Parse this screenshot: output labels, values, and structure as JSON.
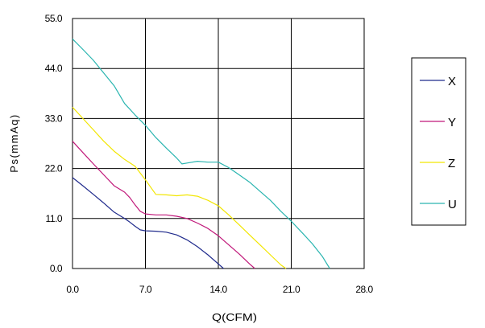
{
  "chart_data": {
    "type": "line",
    "xlabel": "Q(CFM)",
    "ylabel": "Ps(mmAq)",
    "xlim": [
      0,
      28
    ],
    "ylim": [
      0,
      55
    ],
    "x_ticks": [
      "0.0",
      "7.0",
      "14.0",
      "21.0",
      "28.0"
    ],
    "y_ticks": [
      "0.0",
      "11.0",
      "22.0",
      "33.0",
      "44.0",
      "55.0"
    ],
    "grid": true,
    "legend_position": "right",
    "series": [
      {
        "name": "X",
        "color": "#1f2a8c",
        "points": [
          [
            0,
            20
          ],
          [
            1,
            18.2
          ],
          [
            2,
            16.3
          ],
          [
            3,
            14.4
          ],
          [
            4,
            12.4
          ],
          [
            5,
            11
          ],
          [
            5.5,
            10.2
          ],
          [
            6,
            9.3
          ],
          [
            6.5,
            8.5
          ],
          [
            7,
            8.3
          ],
          [
            8,
            8.2
          ],
          [
            9,
            8
          ],
          [
            10,
            7.4
          ],
          [
            11,
            6.3
          ],
          [
            12,
            4.8
          ],
          [
            13,
            3
          ],
          [
            14,
            1
          ],
          [
            14.5,
            0
          ]
        ]
      },
      {
        "name": "Y",
        "color": "#c0187a",
        "points": [
          [
            0,
            28
          ],
          [
            1,
            25.5
          ],
          [
            2,
            23
          ],
          [
            3,
            20.6
          ],
          [
            4,
            18.2
          ],
          [
            5,
            16.8
          ],
          [
            5.5,
            15.6
          ],
          [
            6,
            14
          ],
          [
            6.5,
            12.6
          ],
          [
            7,
            12
          ],
          [
            8,
            11.8
          ],
          [
            9,
            11.8
          ],
          [
            10,
            11.5
          ],
          [
            11,
            11
          ],
          [
            12,
            10
          ],
          [
            13,
            8.8
          ],
          [
            14,
            7.2
          ],
          [
            15,
            5.2
          ],
          [
            16,
            3.2
          ],
          [
            17,
            1
          ],
          [
            17.5,
            0
          ]
        ]
      },
      {
        "name": "Z",
        "color": "#f2e600",
        "points": [
          [
            0,
            35.5
          ],
          [
            1,
            33
          ],
          [
            2,
            30.5
          ],
          [
            3,
            28
          ],
          [
            4,
            25.8
          ],
          [
            5,
            24
          ],
          [
            6,
            22.5
          ],
          [
            7,
            19.5
          ],
          [
            8,
            16.3
          ],
          [
            9,
            16.2
          ],
          [
            10,
            16
          ],
          [
            11,
            16.2
          ],
          [
            12,
            15.9
          ],
          [
            13,
            15
          ],
          [
            14,
            13.8
          ],
          [
            15,
            11.8
          ],
          [
            16,
            9.6
          ],
          [
            17,
            7.4
          ],
          [
            18,
            5.2
          ],
          [
            19,
            3
          ],
          [
            20,
            0.8
          ],
          [
            20.5,
            0
          ]
        ]
      },
      {
        "name": "U",
        "color": "#2ab5b0",
        "points": [
          [
            0,
            50.5
          ],
          [
            1,
            48.2
          ],
          [
            2,
            45.8
          ],
          [
            3,
            43
          ],
          [
            4,
            40.2
          ],
          [
            5,
            36.3
          ],
          [
            6,
            33.8
          ],
          [
            7,
            31.5
          ],
          [
            8,
            28.8
          ],
          [
            9,
            26.5
          ],
          [
            10,
            24.3
          ],
          [
            10.5,
            23
          ],
          [
            11,
            23.2
          ],
          [
            12,
            23.6
          ],
          [
            13,
            23.4
          ],
          [
            14,
            23.4
          ],
          [
            15,
            22.2
          ],
          [
            16,
            20.6
          ],
          [
            17,
            19
          ],
          [
            18,
            17
          ],
          [
            19,
            15
          ],
          [
            20,
            12.6
          ],
          [
            21,
            10.4
          ],
          [
            22,
            8
          ],
          [
            23,
            5.5
          ],
          [
            24,
            2.6
          ],
          [
            24.7,
            0
          ]
        ]
      }
    ]
  }
}
